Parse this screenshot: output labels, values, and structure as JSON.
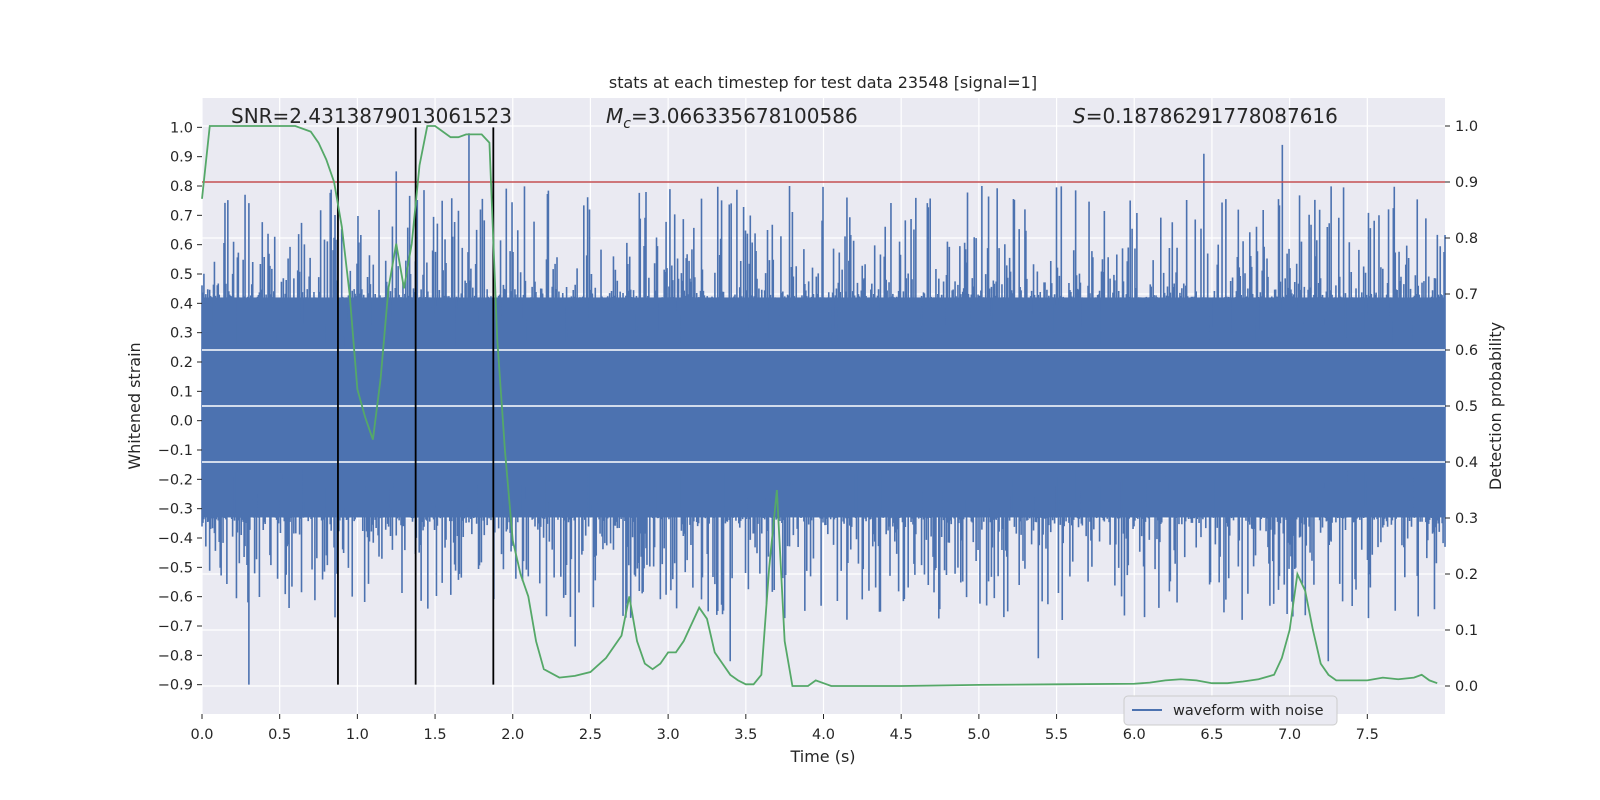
{
  "chart_data": {
    "type": "line",
    "title": "stats at each timestep for test data 23548 [signal=1]",
    "xlabel": "Time (s)",
    "ylabel_left": "Whitened strain",
    "ylabel_right": "Detection probability",
    "xlim": [
      0.0,
      8.0
    ],
    "ylim_left": [
      -1.0,
      1.1
    ],
    "ylim_right": [
      -0.05,
      1.05
    ],
    "x_ticks": [
      0.0,
      0.5,
      1.0,
      1.5,
      2.0,
      2.5,
      3.0,
      3.5,
      4.0,
      4.5,
      5.0,
      5.5,
      6.0,
      6.5,
      7.0,
      7.5
    ],
    "x_tick_labels": [
      "0.0",
      "0.5",
      "1.0",
      "1.5",
      "2.0",
      "2.5",
      "3.0",
      "3.5",
      "4.0",
      "4.5",
      "5.0",
      "5.5",
      "6.0",
      "6.5",
      "7.0",
      "7.5"
    ],
    "left_ticks": [
      -0.9,
      -0.8,
      -0.7,
      -0.6,
      -0.5,
      -0.4,
      -0.3,
      -0.2,
      -0.1,
      0.0,
      0.1,
      0.2,
      0.3,
      0.4,
      0.5,
      0.6,
      0.7,
      0.8,
      0.9,
      1.0
    ],
    "left_tick_labels": [
      "−0.9",
      "−0.8",
      "−0.7",
      "−0.6",
      "−0.5",
      "−0.4",
      "−0.3",
      "−0.2",
      "−0.1",
      "0.0",
      "0.1",
      "0.2",
      "0.3",
      "0.4",
      "0.5",
      "0.6",
      "0.7",
      "0.8",
      "0.9",
      "1.0"
    ],
    "right_ticks": [
      0.0,
      0.1,
      0.2,
      0.3,
      0.4,
      0.5,
      0.6,
      0.7,
      0.8,
      0.9,
      1.0
    ],
    "right_tick_labels": [
      "0.0",
      "0.1",
      "0.2",
      "0.3",
      "0.4",
      "0.5",
      "0.6",
      "0.7",
      "0.8",
      "0.9",
      "1.0"
    ],
    "annotations": {
      "snr": "SNR=2.4313879013061523",
      "mc_symbol": "M",
      "mc_subscript": "c",
      "mc_value": "=3.066335678100586",
      "s_symbol": "S",
      "s_value": "=0.18786291778087616"
    },
    "threshold": {
      "value": 0.9,
      "axis": "right",
      "color": "#c44e52"
    },
    "vertical_lines": [
      0.875,
      1.375,
      1.875
    ],
    "vertical_line_range_left": [
      -0.9,
      1.0
    ],
    "waveform": {
      "name": "waveform with noise",
      "color": "#4c72b0",
      "t_start": 0.0,
      "t_end": 8.0,
      "baseline_low": -0.33,
      "baseline_high": 0.42,
      "notable_peaks": [
        {
          "t": 0.3,
          "v": -0.9
        },
        {
          "t": 0.28,
          "v": 0.77
        },
        {
          "t": 1.25,
          "v": 0.85
        },
        {
          "t": 1.72,
          "v": 0.98
        },
        {
          "t": 3.78,
          "v": 0.8
        },
        {
          "t": 5.02,
          "v": 0.8
        },
        {
          "t": 6.45,
          "v": 0.91
        },
        {
          "t": 6.95,
          "v": 0.94
        },
        {
          "t": 5.38,
          "v": -0.81
        },
        {
          "t": 7.25,
          "v": -0.82
        },
        {
          "t": 2.4,
          "v": -0.77
        },
        {
          "t": 3.4,
          "v": -0.82
        }
      ]
    },
    "probability": {
      "name": "Detection probability",
      "color": "#55a868",
      "t": [
        0.0,
        0.05,
        0.1,
        0.2,
        0.3,
        0.4,
        0.5,
        0.6,
        0.7,
        0.75,
        0.8,
        0.85,
        0.9,
        0.95,
        1.0,
        1.05,
        1.1,
        1.15,
        1.2,
        1.25,
        1.3,
        1.35,
        1.4,
        1.45,
        1.5,
        1.55,
        1.6,
        1.65,
        1.7,
        1.75,
        1.8,
        1.85,
        1.9,
        1.95,
        2.0,
        2.05,
        2.1,
        2.15,
        2.2,
        2.3,
        2.4,
        2.5,
        2.6,
        2.7,
        2.75,
        2.8,
        2.85,
        2.9,
        2.95,
        3.0,
        3.05,
        3.1,
        3.15,
        3.2,
        3.25,
        3.3,
        3.35,
        3.4,
        3.45,
        3.5,
        3.55,
        3.6,
        3.65,
        3.7,
        3.75,
        3.8,
        3.85,
        3.9,
        3.95,
        4.0,
        4.05,
        4.1,
        4.2,
        4.5,
        5.0,
        5.5,
        6.0,
        6.1,
        6.2,
        6.3,
        6.4,
        6.5,
        6.6,
        6.7,
        6.8,
        6.9,
        6.95,
        7.0,
        7.05,
        7.1,
        7.15,
        7.2,
        7.25,
        7.3,
        7.4,
        7.5,
        7.6,
        7.7,
        7.8,
        7.85,
        7.9,
        7.95
      ],
      "p": [
        0.87,
        1.0,
        1.0,
        1.0,
        1.0,
        1.0,
        1.0,
        1.0,
        0.99,
        0.97,
        0.94,
        0.9,
        0.82,
        0.7,
        0.53,
        0.48,
        0.44,
        0.55,
        0.71,
        0.79,
        0.71,
        0.79,
        0.93,
        1.0,
        1.0,
        0.99,
        0.98,
        0.98,
        0.985,
        0.985,
        0.985,
        0.97,
        0.62,
        0.42,
        0.26,
        0.2,
        0.16,
        0.08,
        0.03,
        0.015,
        0.018,
        0.025,
        0.05,
        0.09,
        0.16,
        0.08,
        0.04,
        0.03,
        0.04,
        0.06,
        0.06,
        0.08,
        0.11,
        0.14,
        0.12,
        0.06,
        0.04,
        0.02,
        0.01,
        0.003,
        0.003,
        0.02,
        0.21,
        0.35,
        0.08,
        0.0,
        0.0,
        0.0,
        0.01,
        0.005,
        0.0,
        0.0,
        0.0,
        0.0,
        0.002,
        0.003,
        0.004,
        0.006,
        0.01,
        0.012,
        0.01,
        0.005,
        0.005,
        0.008,
        0.012,
        0.02,
        0.05,
        0.1,
        0.2,
        0.17,
        0.1,
        0.04,
        0.02,
        0.01,
        0.01,
        0.01,
        0.015,
        0.012,
        0.015,
        0.02,
        0.01,
        0.005
      ]
    },
    "legend": {
      "label": "waveform with noise",
      "location": "lower center-right"
    },
    "colors": {
      "background": "#eaeaf2",
      "grid": "#ffffff",
      "vline": "#000000"
    }
  }
}
